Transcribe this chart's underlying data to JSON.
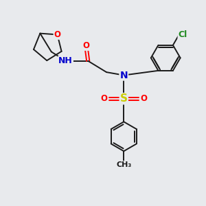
{
  "bg_color": "#e8eaed",
  "bond_color": "#1a1a1a",
  "atom_colors": {
    "O": "#ff0000",
    "N": "#0000cd",
    "S": "#cccc00",
    "Cl": "#228b22",
    "H": "#888888",
    "C": "#1a1a1a"
  },
  "bond_width": 1.4,
  "font_size": 8.5,
  "fig_size": [
    3.0,
    3.0
  ],
  "dpi": 100,
  "xlim": [
    0,
    10
  ],
  "ylim": [
    0,
    10
  ]
}
